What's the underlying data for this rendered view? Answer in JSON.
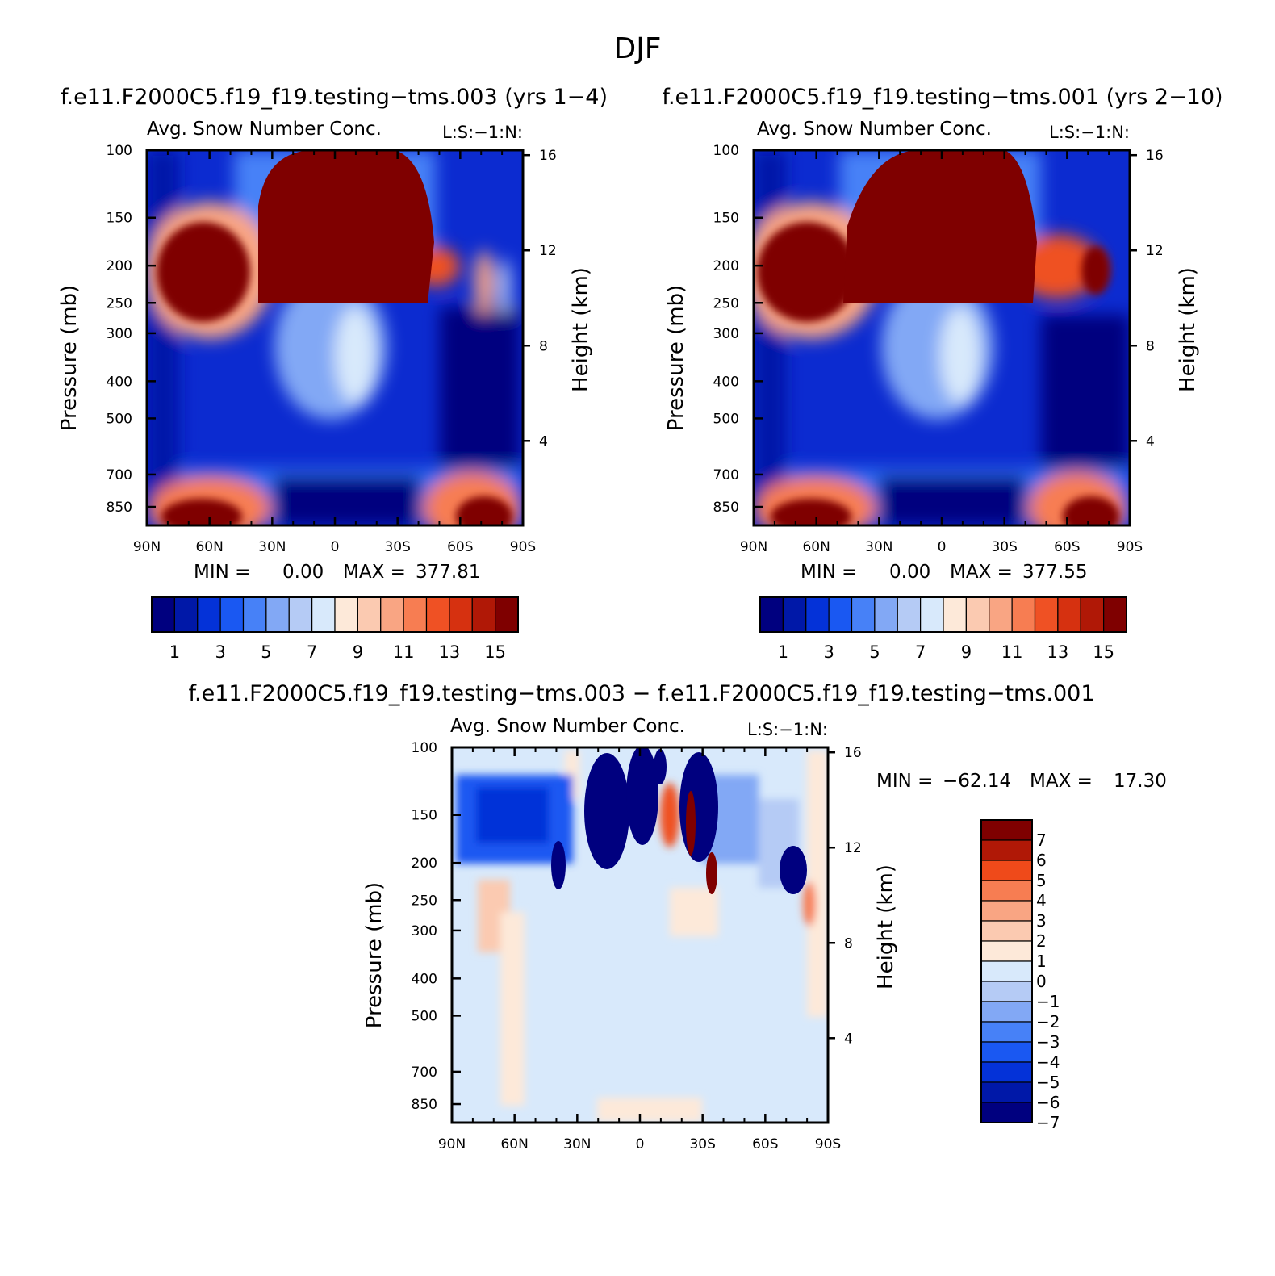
{
  "title": "DJF",
  "chart_data": [
    {
      "type": "contour",
      "run_title": "f.e11.F2000C5.f19_f19.testing−tms.003 (yrs 1−4)",
      "subtitle": "Avg. Snow Number Conc.",
      "units_note": "L:S:−1:N:",
      "ylabel": "Pressure (mb)",
      "ylabel_right": "Height (km)",
      "x_ticks": [
        "90N",
        "60N",
        "30N",
        "0",
        "30S",
        "60S",
        "90S"
      ],
      "x_range": [
        90,
        -90
      ],
      "y_ticks": [
        "100",
        "150",
        "200",
        "250",
        "300",
        "400",
        "500",
        "700",
        "850"
      ],
      "y_range": [
        100,
        950
      ],
      "height_ticks": [
        "16",
        "12",
        "8",
        "4"
      ],
      "min_label": "MIN =",
      "min_value": "0.00",
      "max_label": "MAX =",
      "max_value": "377.81",
      "colorbar_labels": [
        "1",
        "3",
        "5",
        "7",
        "9",
        "11",
        "13",
        "15"
      ]
    },
    {
      "type": "contour",
      "run_title": "f.e11.F2000C5.f19_f19.testing−tms.001 (yrs 2−10)",
      "subtitle": "Avg. Snow Number Conc.",
      "units_note": "L:S:−1:N:",
      "ylabel": "Pressure (mb)",
      "ylabel_right": "Height (km)",
      "x_ticks": [
        "90N",
        "60N",
        "30N",
        "0",
        "30S",
        "60S",
        "90S"
      ],
      "x_range": [
        90,
        -90
      ],
      "y_ticks": [
        "100",
        "150",
        "200",
        "250",
        "300",
        "400",
        "500",
        "700",
        "850"
      ],
      "y_range": [
        100,
        950
      ],
      "height_ticks": [
        "16",
        "12",
        "8",
        "4"
      ],
      "min_label": "MIN =",
      "min_value": "0.00",
      "max_label": "MAX =",
      "max_value": "377.55",
      "colorbar_labels": [
        "1",
        "3",
        "5",
        "7",
        "9",
        "11",
        "13",
        "15"
      ]
    },
    {
      "type": "contour",
      "run_title": "f.e11.F2000C5.f19_f19.testing−tms.003 − f.e11.F2000C5.f19_f19.testing−tms.001",
      "subtitle": "Avg. Snow Number Conc.",
      "units_note": "L:S:−1:N:",
      "ylabel": "Pressure (mb)",
      "ylabel_right": "Height (km)",
      "x_ticks": [
        "90N",
        "60N",
        "30N",
        "0",
        "30S",
        "60S",
        "90S"
      ],
      "x_range": [
        90,
        -90
      ],
      "y_ticks": [
        "100",
        "150",
        "200",
        "250",
        "300",
        "400",
        "500",
        "700",
        "850"
      ],
      "y_range": [
        100,
        950
      ],
      "height_ticks": [
        "16",
        "12",
        "8",
        "4"
      ],
      "min_label": "MIN =",
      "min_value": "−62.14",
      "max_label": "MAX =",
      "max_value": "17.30",
      "colorbar_labels": [
        "7",
        "6",
        "5",
        "4",
        "3",
        "2",
        "1",
        "0",
        "−1",
        "−2",
        "−3",
        "−4",
        "−5",
        "−6",
        "−7"
      ]
    }
  ],
  "colors": {
    "absolute_scale": [
      "#00007f",
      "#0018a8",
      "#0432d8",
      "#1a58f2",
      "#4781f7",
      "#82a8f5",
      "#b5cbf5",
      "#d8e9fb",
      "#fde9d9",
      "#fbcab1",
      "#f9a583",
      "#f77d52",
      "#ef5124",
      "#d63110",
      "#b01806",
      "#7f0000"
    ],
    "difference_scale": [
      "#7f0000",
      "#b01806",
      "#ef4a1a",
      "#f77d52",
      "#f9a583",
      "#fbcab1",
      "#fde9d9",
      "#d8e9fb",
      "#b5cbf5",
      "#82a8f5",
      "#4781f7",
      "#1a58f2",
      "#0432d8",
      "#0018a8",
      "#00007f"
    ]
  }
}
